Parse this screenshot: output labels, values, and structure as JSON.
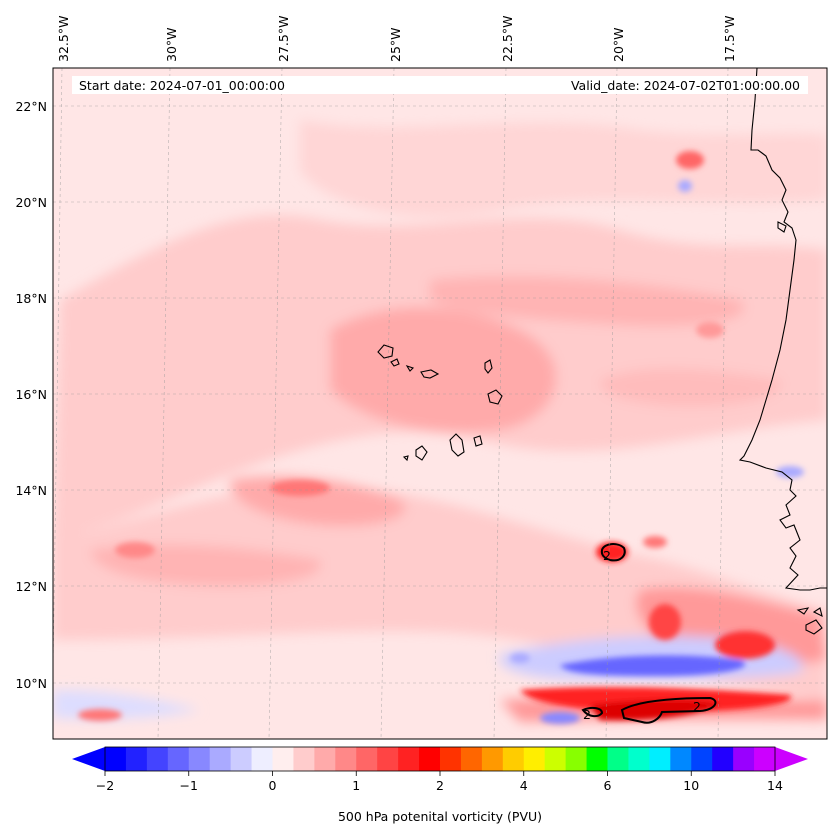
{
  "header": {
    "start_date": "Start date: 2024-07-01_00:00:00",
    "valid_date": "Valid_date: 2024-07-02T01:00:00.00"
  },
  "map": {
    "lon_labels": [
      "32.5°W",
      "30°W",
      "27.5°W",
      "25°W",
      "22.5°W",
      "20°W",
      "17.5°W"
    ],
    "lat_labels": [
      "22°N",
      "20°N",
      "18°N",
      "16°N",
      "14°N",
      "12°N",
      "10°N"
    ],
    "contour_labels": [
      "2",
      "2",
      "2"
    ],
    "gridlines": true,
    "coastline_color": "#000000"
  },
  "colorbar": {
    "title": "500 hPa potenital vorticity (PVU)",
    "tick_labels": [
      "−2",
      "−1",
      "0",
      "1",
      "2",
      "4",
      "6",
      "10",
      "14"
    ],
    "colors": [
      "#0000ff",
      "#2222ff",
      "#4444ff",
      "#6666ff",
      "#8888ff",
      "#aaaaff",
      "#ccccff",
      "#eeeeff",
      "#ffeeee",
      "#ffcccc",
      "#ffaaaa",
      "#ff8888",
      "#ff6666",
      "#ff4444",
      "#ff2222",
      "#ff0000",
      "#ff3300",
      "#ff6600",
      "#ff9900",
      "#ffcc00",
      "#ffee00",
      "#ccff00",
      "#88ff00",
      "#00ff00",
      "#00ff88",
      "#00ffcc",
      "#00eeff",
      "#0088ff",
      "#0044ff",
      "#2200ff",
      "#9900ff",
      "#cc00ff"
    ],
    "extend_min_color": "#0000ff",
    "extend_max_color": "#cc00ff"
  }
}
